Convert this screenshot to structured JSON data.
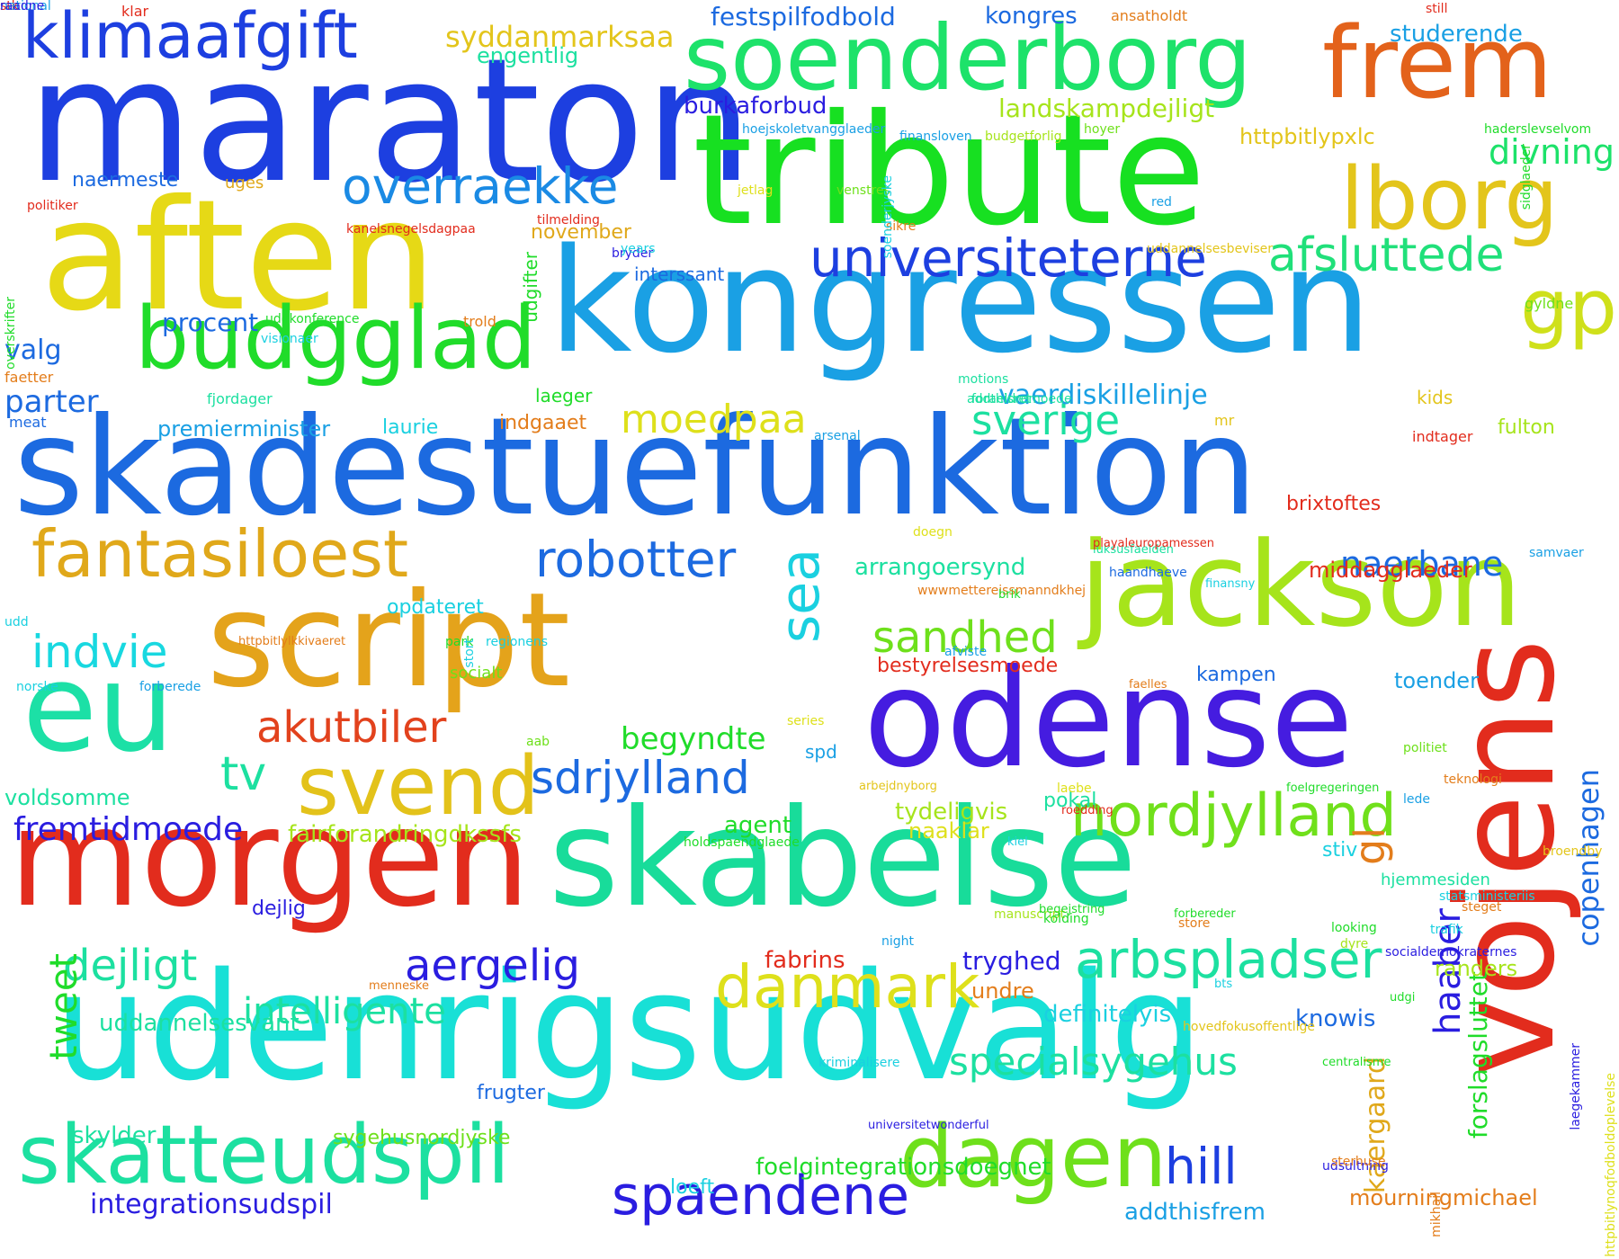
{
  "words": [
    {
      "t": "maraton",
      "c": "#1d3fe0",
      "w": 1.0
    },
    {
      "t": "tribute",
      "c": "#17e021",
      "w": 0.95
    },
    {
      "t": "skadestuefunktion",
      "c": "#1c6ae0",
      "w": 0.9
    },
    {
      "t": "udenrigsudvalg",
      "c": "#18e0d6",
      "w": 0.88
    },
    {
      "t": "kongressen",
      "c": "#1aa0e4",
      "w": 0.86
    },
    {
      "t": "aften",
      "c": "#e6d916",
      "w": 0.85
    },
    {
      "t": "skabelse",
      "c": "#18dc9a",
      "w": 0.84
    },
    {
      "t": "morgen",
      "c": "#e22c1d",
      "w": 0.83
    },
    {
      "t": "odense",
      "c": "#451ce0",
      "w": 0.8
    },
    {
      "t": "script",
      "c": "#e4a31b",
      "w": 0.8
    },
    {
      "t": "eu",
      "c": "#1ce0a6",
      "w": 0.78
    },
    {
      "t": "vojens",
      "c": "#e22c1d",
      "w": 0.78
    },
    {
      "t": "soenderborg",
      "c": "#1de26a",
      "w": 0.7
    },
    {
      "t": "frem",
      "c": "#e3621b",
      "w": 0.7
    },
    {
      "t": "jackson",
      "c": "#a6e41b",
      "w": 0.7
    },
    {
      "t": "budgglad",
      "c": "#20dc2a",
      "w": 0.55
    },
    {
      "t": "skatteudspil",
      "c": "#1ce0a0",
      "w": 0.55
    },
    {
      "t": "dagen",
      "c": "#6ee01b",
      "w": 0.52
    },
    {
      "t": "lborg",
      "c": "#e3c51b",
      "w": 0.52
    },
    {
      "t": "fantasiloest",
      "c": "#e0a81a",
      "w": 0.5
    },
    {
      "t": "svend",
      "c": "#e3c21a",
      "w": 0.5
    },
    {
      "t": "klimaafgift",
      "c": "#1d3fe0",
      "w": 0.45
    },
    {
      "t": "gp",
      "c": "#cfe01b",
      "w": 0.45
    },
    {
      "t": "sea",
      "c": "#1ad0e0",
      "w": 0.45
    },
    {
      "t": "universiteterne",
      "c": "#1d3fe0",
      "w": 0.4
    },
    {
      "t": "afsluttede",
      "c": "#20e07a",
      "w": 0.4
    },
    {
      "t": "overraekke",
      "c": "#1a8ae4",
      "w": 0.4
    },
    {
      "t": "robotter",
      "c": "#1c6ae0",
      "w": 0.4
    },
    {
      "t": "nordjylland",
      "c": "#70e01b",
      "w": 0.42
    },
    {
      "t": "arbspladser",
      "c": "#1ce0a0",
      "w": 0.4
    },
    {
      "t": "danmark",
      "c": "#dee01b",
      "w": 0.4
    },
    {
      "t": "aergelig",
      "c": "#2a1de0",
      "w": 0.38
    },
    {
      "t": "spaendene",
      "c": "#2a1de0",
      "w": 0.38
    },
    {
      "t": "sdrjylland",
      "c": "#1c6ae0",
      "w": 0.38
    },
    {
      "t": "akutbiler",
      "c": "#e2421d",
      "w": 0.38
    },
    {
      "t": "indvie",
      "c": "#18d8e0",
      "w": 0.38
    },
    {
      "t": "dejligt",
      "c": "#1ce0a0",
      "w": 0.38
    },
    {
      "t": "tv",
      "c": "#1ce0a0",
      "w": 0.38
    },
    {
      "t": "hill",
      "c": "#1d3fe0",
      "w": 0.38
    },
    {
      "t": "haaber",
      "c": "#2a1de0",
      "w": 0.38
    },
    {
      "t": "gl",
      "c": "#e37d1b",
      "w": 0.38
    },
    {
      "t": "tweet",
      "c": "#20dc2a",
      "w": 0.38
    },
    {
      "t": "sandhed",
      "c": "#6ee01b",
      "w": 0.36
    },
    {
      "t": "sverige",
      "c": "#1ce0a0",
      "w": 0.36
    },
    {
      "t": "moedpaa",
      "c": "#dee01b",
      "w": 0.36
    },
    {
      "t": "naerbane",
      "c": "#1c6ae0",
      "w": 0.34
    },
    {
      "t": "specialsygehus",
      "c": "#1ce0a0",
      "w": 0.34
    },
    {
      "t": "intelligente",
      "c": "#1ce0a0",
      "w": 0.32
    },
    {
      "t": "fremtidmoede",
      "c": "#2a1de0",
      "w": 0.3
    },
    {
      "t": "divning",
      "c": "#1de26a",
      "w": 0.3
    },
    {
      "t": "vaerdiskillelinje",
      "c": "#1aa0e4",
      "w": 0.28
    },
    {
      "t": "copenhagen",
      "c": "#1c6ae0",
      "w": 0.28
    },
    {
      "t": "kaergaard",
      "c": "#e0a81a",
      "w": 0.26
    },
    {
      "t": "forslagsluttet",
      "c": "#20dc2a",
      "w": 0.24
    },
    {
      "t": "begyndte",
      "c": "#20dc2a",
      "w": 0.28
    },
    {
      "t": "fairforandringdkssfs",
      "c": "#a6e41b",
      "w": 0.26
    },
    {
      "t": "integrationsudspil",
      "c": "#2a1de0",
      "w": 0.28
    },
    {
      "t": "parter",
      "c": "#1c6ae0",
      "w": 0.3
    },
    {
      "t": "procent",
      "c": "#1c6ae0",
      "w": 0.26
    },
    {
      "t": "valg",
      "c": "#1c6ae0",
      "w": 0.26
    },
    {
      "t": "syddanmarksaa",
      "c": "#e3c51b",
      "w": 0.26
    },
    {
      "t": "festspilfodbold",
      "c": "#1c6ae0",
      "w": 0.24
    },
    {
      "t": "landskampdejligt",
      "c": "#a6e41b",
      "w": 0.24
    },
    {
      "t": "burkaforbud",
      "c": "#2a1de0",
      "w": 0.22
    },
    {
      "t": "studerende",
      "c": "#1aa0e4",
      "w": 0.24
    },
    {
      "t": "kongres",
      "c": "#1c6ae0",
      "w": 0.24
    },
    {
      "t": "engentlig",
      "c": "#1ce0a0",
      "w": 0.24
    },
    {
      "t": "httpbitlypxlc",
      "c": "#e3c51b",
      "w": 0.22
    },
    {
      "t": "premierminister",
      "c": "#1aa0e4",
      "w": 0.22
    },
    {
      "t": "arrangoersynd",
      "c": "#1ce0a0",
      "w": 0.22
    },
    {
      "t": "middagglaeder",
      "c": "#e22c1d",
      "w": 0.22
    },
    {
      "t": "toender",
      "c": "#1aa0e4",
      "w": 0.22
    },
    {
      "t": "opdateret",
      "c": "#1ad0e0",
      "w": 0.22
    },
    {
      "t": "voldsomme",
      "c": "#1ce0a0",
      "w": 0.2
    },
    {
      "t": "uddannelsesvant",
      "c": "#1ce0a0",
      "w": 0.2
    },
    {
      "t": "skylder",
      "c": "#1ce0a0",
      "w": 0.22
    },
    {
      "t": "sygehusnordjyske",
      "c": "#6ee01b",
      "w": 0.22
    },
    {
      "t": "foelgintegrationsdoegnet",
      "c": "#20dc2a",
      "w": 0.2
    },
    {
      "t": "addthisfrem",
      "c": "#1aa0e4",
      "w": 0.22
    },
    {
      "t": "mourningmichael",
      "c": "#e37d1b",
      "w": 0.22
    },
    {
      "t": "loeft",
      "c": "#1ad0e0",
      "w": 0.22
    },
    {
      "t": "frugter",
      "c": "#1c6ae0",
      "w": 0.18
    },
    {
      "t": "knowis",
      "c": "#1c6ae0",
      "w": 0.2
    },
    {
      "t": "randers",
      "c": "#a6e41b",
      "w": 0.22
    },
    {
      "t": "definitelyis",
      "c": "#1ad0e0",
      "w": 0.2
    },
    {
      "t": "undre",
      "c": "#e37d1b",
      "w": 0.22
    },
    {
      "t": "tryghed",
      "c": "#2a1de0",
      "w": 0.2
    },
    {
      "t": "fabrins",
      "c": "#e22c1d",
      "w": 0.22
    },
    {
      "t": "tydeligvis",
      "c": "#a6e41b",
      "w": 0.22
    },
    {
      "t": "naaklar",
      "c": "#dee01b",
      "w": 0.22
    },
    {
      "t": "agent",
      "c": "#20dc2a",
      "w": 0.22
    },
    {
      "t": "pokal",
      "c": "#1ce0a0",
      "w": 0.22
    },
    {
      "t": "stiv",
      "c": "#1ad0e0",
      "w": 0.22
    },
    {
      "t": "hjemmesiden",
      "c": "#1ce0a0",
      "w": 0.2
    },
    {
      "t": "kampen",
      "c": "#1c6ae0",
      "w": 0.18
    },
    {
      "t": "bestyrelsesmoede",
      "c": "#e22c1d",
      "w": 0.2
    },
    {
      "t": "socialt",
      "c": "#6ee01b",
      "w": 0.2
    },
    {
      "t": "laurie",
      "c": "#1ad0e0",
      "w": 0.18
    },
    {
      "t": "indgaaet",
      "c": "#e37d1b",
      "w": 0.2
    },
    {
      "t": "laeger",
      "c": "#20dc2a",
      "w": 0.2
    },
    {
      "t": "brixtoftes",
      "c": "#e22c1d",
      "w": 0.2
    },
    {
      "t": "fulton",
      "c": "#a6e41b",
      "w": 0.2
    },
    {
      "t": "kids",
      "c": "#e3c51b",
      "w": 0.2
    },
    {
      "t": "interssant",
      "c": "#1c6ae0",
      "w": 0.18
    },
    {
      "t": "november",
      "c": "#e0a81a",
      "w": 0.2
    },
    {
      "t": "naermeste",
      "c": "#1c6ae0",
      "w": 0.2
    },
    {
      "t": "uges",
      "c": "#e0a81a",
      "w": 0.2
    },
    {
      "t": "udgifter",
      "c": "#20dc2a",
      "w": 0.18
    },
    {
      "t": "dejlig",
      "c": "#2a1de0",
      "w": 0.2
    },
    {
      "t": "spd",
      "c": "#1aa0e4",
      "w": 0.2
    },
    {
      "t": "klar",
      "c": "#e22c1d",
      "w": 0.2
    },
    {
      "t": "ansatholdt",
      "c": "#e37d1b",
      "w": 0.16
    },
    {
      "t": "still",
      "c": "#e22c1d",
      "w": 0.16
    },
    {
      "t": "hoejskoletvangglaeder",
      "c": "#1aa0e4",
      "w": 0.14
    },
    {
      "t": "finansloven",
      "c": "#1aa0e4",
      "w": 0.14
    },
    {
      "t": "budgetforlig",
      "c": "#a6e41b",
      "w": 0.14
    },
    {
      "t": "hoyer",
      "c": "#6ee01b",
      "w": 0.14
    },
    {
      "t": "haderslevselvom",
      "c": "#20dc2a",
      "w": 0.14
    },
    {
      "t": "kanelsnegelsdagpaa",
      "c": "#e22c1d",
      "w": 0.14
    },
    {
      "t": "politiker",
      "c": "#e22c1d",
      "w": 0.14
    },
    {
      "t": "tilmelding",
      "c": "#e22c1d",
      "w": 0.14
    },
    {
      "t": "jetlag",
      "c": "#dee01b",
      "w": 0.14
    },
    {
      "t": "venstres",
      "c": "#6ee01b",
      "w": 0.14
    },
    {
      "t": "sikre",
      "c": "#e37d1b",
      "w": 0.14
    },
    {
      "t": "red",
      "c": "#1aa0e4",
      "w": 0.14
    },
    {
      "t": "bryder",
      "c": "#2a1de0",
      "w": 0.16
    },
    {
      "t": "years",
      "c": "#1ad0e0",
      "w": 0.16
    },
    {
      "t": "uddannelsesbeviser",
      "c": "#e3c51b",
      "w": 0.14
    },
    {
      "t": "uddkonference",
      "c": "#20dc2a",
      "w": 0.14
    },
    {
      "t": "visionaer",
      "c": "#1ad0e0",
      "w": 0.14
    },
    {
      "t": "trold",
      "c": "#e37d1b",
      "w": 0.16
    },
    {
      "t": "gyldne",
      "c": "#6ee01b",
      "w": 0.16
    },
    {
      "t": "faetter",
      "c": "#e37d1b",
      "w": 0.16
    },
    {
      "t": "meat",
      "c": "#1c6ae0",
      "w": 0.16
    },
    {
      "t": "fjordager",
      "c": "#1ce0a0",
      "w": 0.16
    },
    {
      "t": "motions",
      "c": "#1ce0a0",
      "w": 0.16
    },
    {
      "t": "addthisret",
      "c": "#1ce0a0",
      "w": 0.14
    },
    {
      "t": "foraeldremoede",
      "c": "#1ce0a0",
      "w": 0.14
    },
    {
      "t": "arsenal",
      "c": "#1aa0e4",
      "w": 0.14
    },
    {
      "t": "mr",
      "c": "#e3c51b",
      "w": 0.16
    },
    {
      "t": "indtager",
      "c": "#e22c1d",
      "w": 0.16
    },
    {
      "t": "doegn",
      "c": "#dee01b",
      "w": 0.14
    },
    {
      "t": "luksusfaelden",
      "c": "#1ce0a0",
      "w": 0.14
    },
    {
      "t": "playaleuropamessen",
      "c": "#e22c1d",
      "w": 0.13
    },
    {
      "t": "haandhaeve",
      "c": "#1c6ae0",
      "w": 0.13
    },
    {
      "t": "samvaer",
      "c": "#1aa0e4",
      "w": 0.14
    },
    {
      "t": "finansny",
      "c": "#1ad0e0",
      "w": 0.14
    },
    {
      "t": "udd",
      "c": "#1ad0e0",
      "w": 0.13
    },
    {
      "t": "httpbitlylkkivaeret",
      "c": "#e37d1b",
      "w": 0.14
    },
    {
      "t": "wwwmettereissmanndkhej",
      "c": "#e37d1b",
      "w": 0.13
    },
    {
      "t": "brik",
      "c": "#20dc2a",
      "w": 0.14
    },
    {
      "t": "afviste",
      "c": "#1aa0e4",
      "w": 0.13
    },
    {
      "t": "park",
      "c": "#20dc2a",
      "w": 0.14
    },
    {
      "t": "regionens",
      "c": "#1ad0e0",
      "w": 0.14
    },
    {
      "t": "norske",
      "c": "#1ad0e0",
      "w": 0.14
    },
    {
      "t": "forberede",
      "c": "#1aa0e4",
      "w": 0.14
    },
    {
      "t": "faelles",
      "c": "#e37d1b",
      "w": 0.14
    },
    {
      "t": "aab",
      "c": "#6ee01b",
      "w": 0.13
    },
    {
      "t": "series",
      "c": "#dee01b",
      "w": 0.14
    },
    {
      "t": "politiet",
      "c": "#6ee01b",
      "w": 0.14
    },
    {
      "t": "teknologi",
      "c": "#e37d1b",
      "w": 0.14
    },
    {
      "t": "arbejdnyborg",
      "c": "#e3c51b",
      "w": 0.14
    },
    {
      "t": "foelgregeringen",
      "c": "#20dc2a",
      "w": 0.13
    },
    {
      "t": "holdspaendglaede",
      "c": "#20dc2a",
      "w": 0.13
    },
    {
      "t": "kiel",
      "c": "#1ad0e0",
      "w": 0.13
    },
    {
      "t": "lede",
      "c": "#1aa0e4",
      "w": 0.14
    },
    {
      "t": "dyre",
      "c": "#a6e41b",
      "w": 0.14
    },
    {
      "t": "statsministeriis",
      "c": "#1ad0e0",
      "w": 0.14
    },
    {
      "t": "steget",
      "c": "#e37d1b",
      "w": 0.14
    },
    {
      "t": "manuscript",
      "c": "#a6e41b",
      "w": 0.14
    },
    {
      "t": "store",
      "c": "#e37d1b",
      "w": 0.14
    },
    {
      "t": "looking",
      "c": "#20dc2a",
      "w": 0.14
    },
    {
      "t": "hovedfokusoffentlige",
      "c": "#e3c51b",
      "w": 0.14
    },
    {
      "t": "broendby",
      "c": "#e3c51b",
      "w": 0.14
    },
    {
      "t": "trafik",
      "c": "#1ad0e0",
      "w": 0.13
    },
    {
      "t": "begejstring",
      "c": "#20dc2a",
      "w": 0.13
    },
    {
      "t": "forbereder",
      "c": "#20dc2a",
      "w": 0.14
    },
    {
      "t": "laebe",
      "c": "#dee01b",
      "w": 0.14
    },
    {
      "t": "roedding",
      "c": "#e22c1d",
      "w": 0.14
    },
    {
      "t": "kolding",
      "c": "#20dc2a",
      "w": 0.14
    },
    {
      "t": "socialdemokraternes",
      "c": "#2a1de0",
      "w": 0.16
    },
    {
      "t": "night",
      "c": "#1aa0e4",
      "w": 0.14
    },
    {
      "t": "udgi",
      "c": "#20dc2a",
      "w": 0.13
    },
    {
      "t": "kriminalisere",
      "c": "#1ad0e0",
      "w": 0.13
    },
    {
      "t": "universitetwonderful",
      "c": "#2a1de0",
      "w": 0.13
    },
    {
      "t": "menneske",
      "c": "#e37d1b",
      "w": 0.13
    },
    {
      "t": "centralisme",
      "c": "#20dc2a",
      "w": 0.13
    },
    {
      "t": "bts",
      "c": "#1ad0e0",
      "w": 0.13
    },
    {
      "t": "udsultning",
      "c": "#2a1de0",
      "w": 0.13
    },
    {
      "t": "sterhuse",
      "c": "#e37d1b",
      "w": 0.13
    },
    {
      "t": "laegekammer",
      "c": "#2a1de0",
      "w": 0.13
    },
    {
      "t": "httpbitlynoqfodboldoplevelse",
      "c": "#dee01b",
      "w": 0.13
    },
    {
      "t": "overskrifter",
      "c": "#20dc2a",
      "w": 0.16
    },
    {
      "t": "sidglaeder",
      "c": "#20dc2a",
      "w": 0.18
    },
    {
      "t": "soenderjyske",
      "c": "#1ad0e0",
      "w": 0.14
    },
    {
      "t": "stort",
      "c": "#1ad0e0",
      "w": 0.13
    },
    {
      "t": "mikhail",
      "c": "#e37d1b",
      "w": 0.13
    },
    {
      "t": "stk",
      "c": "#e22c1d",
      "w": 0.13
    },
    {
      "t": "national",
      "c": "#1aa0e4",
      "w": 0.13
    },
    {
      "t": "raadne",
      "c": "#2a1de0",
      "w": 0.13
    }
  ]
}
